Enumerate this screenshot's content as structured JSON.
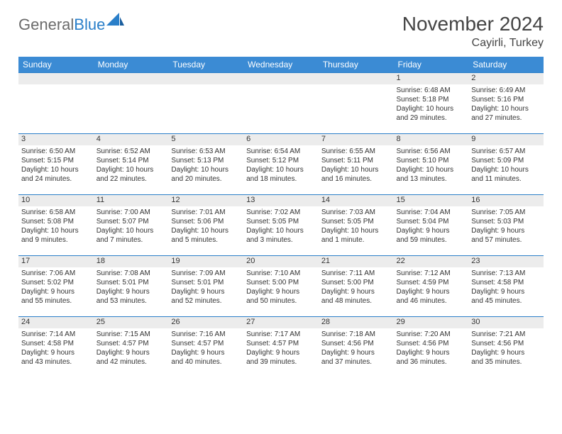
{
  "brand": {
    "part1": "General",
    "part2": "Blue"
  },
  "title": "November 2024",
  "location": "Cayirli, Turkey",
  "colors": {
    "header_bg": "#3b8bd4",
    "row_divider": "#2a7fc9",
    "daynum_bg": "#ececec",
    "text": "#333333",
    "logo_gray": "#6b6b6b",
    "logo_blue": "#2a7fc9"
  },
  "fonts": {
    "title_size": 28,
    "location_size": 16,
    "header_size": 12,
    "cell_size": 10
  },
  "weekdays": [
    "Sunday",
    "Monday",
    "Tuesday",
    "Wednesday",
    "Thursday",
    "Friday",
    "Saturday"
  ],
  "weeks": [
    [
      null,
      null,
      null,
      null,
      null,
      {
        "n": "1",
        "sr": "Sunrise: 6:48 AM",
        "ss": "Sunset: 5:18 PM",
        "d1": "Daylight: 10 hours",
        "d2": "and 29 minutes."
      },
      {
        "n": "2",
        "sr": "Sunrise: 6:49 AM",
        "ss": "Sunset: 5:16 PM",
        "d1": "Daylight: 10 hours",
        "d2": "and 27 minutes."
      }
    ],
    [
      {
        "n": "3",
        "sr": "Sunrise: 6:50 AM",
        "ss": "Sunset: 5:15 PM",
        "d1": "Daylight: 10 hours",
        "d2": "and 24 minutes."
      },
      {
        "n": "4",
        "sr": "Sunrise: 6:52 AM",
        "ss": "Sunset: 5:14 PM",
        "d1": "Daylight: 10 hours",
        "d2": "and 22 minutes."
      },
      {
        "n": "5",
        "sr": "Sunrise: 6:53 AM",
        "ss": "Sunset: 5:13 PM",
        "d1": "Daylight: 10 hours",
        "d2": "and 20 minutes."
      },
      {
        "n": "6",
        "sr": "Sunrise: 6:54 AM",
        "ss": "Sunset: 5:12 PM",
        "d1": "Daylight: 10 hours",
        "d2": "and 18 minutes."
      },
      {
        "n": "7",
        "sr": "Sunrise: 6:55 AM",
        "ss": "Sunset: 5:11 PM",
        "d1": "Daylight: 10 hours",
        "d2": "and 16 minutes."
      },
      {
        "n": "8",
        "sr": "Sunrise: 6:56 AM",
        "ss": "Sunset: 5:10 PM",
        "d1": "Daylight: 10 hours",
        "d2": "and 13 minutes."
      },
      {
        "n": "9",
        "sr": "Sunrise: 6:57 AM",
        "ss": "Sunset: 5:09 PM",
        "d1": "Daylight: 10 hours",
        "d2": "and 11 minutes."
      }
    ],
    [
      {
        "n": "10",
        "sr": "Sunrise: 6:58 AM",
        "ss": "Sunset: 5:08 PM",
        "d1": "Daylight: 10 hours",
        "d2": "and 9 minutes."
      },
      {
        "n": "11",
        "sr": "Sunrise: 7:00 AM",
        "ss": "Sunset: 5:07 PM",
        "d1": "Daylight: 10 hours",
        "d2": "and 7 minutes."
      },
      {
        "n": "12",
        "sr": "Sunrise: 7:01 AM",
        "ss": "Sunset: 5:06 PM",
        "d1": "Daylight: 10 hours",
        "d2": "and 5 minutes."
      },
      {
        "n": "13",
        "sr": "Sunrise: 7:02 AM",
        "ss": "Sunset: 5:05 PM",
        "d1": "Daylight: 10 hours",
        "d2": "and 3 minutes."
      },
      {
        "n": "14",
        "sr": "Sunrise: 7:03 AM",
        "ss": "Sunset: 5:05 PM",
        "d1": "Daylight: 10 hours",
        "d2": "and 1 minute."
      },
      {
        "n": "15",
        "sr": "Sunrise: 7:04 AM",
        "ss": "Sunset: 5:04 PM",
        "d1": "Daylight: 9 hours",
        "d2": "and 59 minutes."
      },
      {
        "n": "16",
        "sr": "Sunrise: 7:05 AM",
        "ss": "Sunset: 5:03 PM",
        "d1": "Daylight: 9 hours",
        "d2": "and 57 minutes."
      }
    ],
    [
      {
        "n": "17",
        "sr": "Sunrise: 7:06 AM",
        "ss": "Sunset: 5:02 PM",
        "d1": "Daylight: 9 hours",
        "d2": "and 55 minutes."
      },
      {
        "n": "18",
        "sr": "Sunrise: 7:08 AM",
        "ss": "Sunset: 5:01 PM",
        "d1": "Daylight: 9 hours",
        "d2": "and 53 minutes."
      },
      {
        "n": "19",
        "sr": "Sunrise: 7:09 AM",
        "ss": "Sunset: 5:01 PM",
        "d1": "Daylight: 9 hours",
        "d2": "and 52 minutes."
      },
      {
        "n": "20",
        "sr": "Sunrise: 7:10 AM",
        "ss": "Sunset: 5:00 PM",
        "d1": "Daylight: 9 hours",
        "d2": "and 50 minutes."
      },
      {
        "n": "21",
        "sr": "Sunrise: 7:11 AM",
        "ss": "Sunset: 5:00 PM",
        "d1": "Daylight: 9 hours",
        "d2": "and 48 minutes."
      },
      {
        "n": "22",
        "sr": "Sunrise: 7:12 AM",
        "ss": "Sunset: 4:59 PM",
        "d1": "Daylight: 9 hours",
        "d2": "and 46 minutes."
      },
      {
        "n": "23",
        "sr": "Sunrise: 7:13 AM",
        "ss": "Sunset: 4:58 PM",
        "d1": "Daylight: 9 hours",
        "d2": "and 45 minutes."
      }
    ],
    [
      {
        "n": "24",
        "sr": "Sunrise: 7:14 AM",
        "ss": "Sunset: 4:58 PM",
        "d1": "Daylight: 9 hours",
        "d2": "and 43 minutes."
      },
      {
        "n": "25",
        "sr": "Sunrise: 7:15 AM",
        "ss": "Sunset: 4:57 PM",
        "d1": "Daylight: 9 hours",
        "d2": "and 42 minutes."
      },
      {
        "n": "26",
        "sr": "Sunrise: 7:16 AM",
        "ss": "Sunset: 4:57 PM",
        "d1": "Daylight: 9 hours",
        "d2": "and 40 minutes."
      },
      {
        "n": "27",
        "sr": "Sunrise: 7:17 AM",
        "ss": "Sunset: 4:57 PM",
        "d1": "Daylight: 9 hours",
        "d2": "and 39 minutes."
      },
      {
        "n": "28",
        "sr": "Sunrise: 7:18 AM",
        "ss": "Sunset: 4:56 PM",
        "d1": "Daylight: 9 hours",
        "d2": "and 37 minutes."
      },
      {
        "n": "29",
        "sr": "Sunrise: 7:20 AM",
        "ss": "Sunset: 4:56 PM",
        "d1": "Daylight: 9 hours",
        "d2": "and 36 minutes."
      },
      {
        "n": "30",
        "sr": "Sunrise: 7:21 AM",
        "ss": "Sunset: 4:56 PM",
        "d1": "Daylight: 9 hours",
        "d2": "and 35 minutes."
      }
    ]
  ]
}
